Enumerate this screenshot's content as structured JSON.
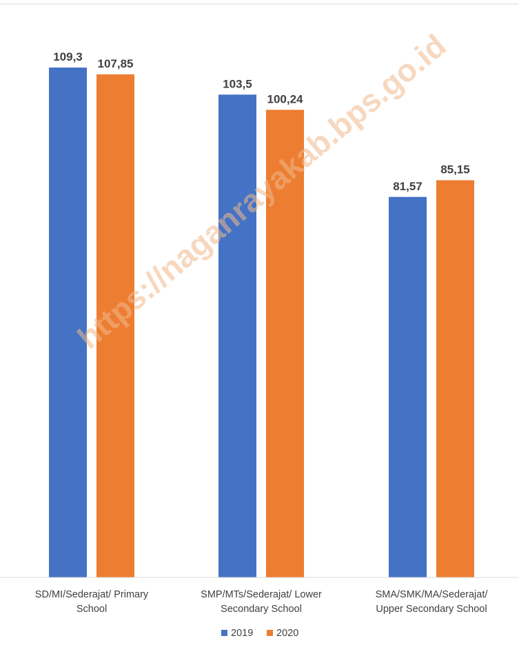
{
  "watermark": "https://naganrayakab.bps.go.id",
  "chart_data": {
    "type": "bar",
    "categories": [
      [
        "SD/MI/Sederajat/ Primary",
        "School"
      ],
      [
        "SMP/MTs/Sederajat/ Lower",
        "Secondary School"
      ],
      [
        "SMA/SMK/MA/Sederajat/",
        "Upper Secondary School"
      ]
    ],
    "series": [
      {
        "name": "2019",
        "color": "#4472C4",
        "values": [
          109.3,
          103.5,
          81.57
        ],
        "labels": [
          "109,3",
          "103,5",
          "81,57"
        ]
      },
      {
        "name": "2020",
        "color": "#ED7D31",
        "values": [
          107.85,
          100.24,
          85.15
        ],
        "labels": [
          "107,85",
          "100,24",
          "85,15"
        ]
      }
    ],
    "ylim": [
      0,
      125
    ],
    "grid": false,
    "legend": "bottom",
    "title": "",
    "xlabel": "",
    "ylabel": ""
  }
}
